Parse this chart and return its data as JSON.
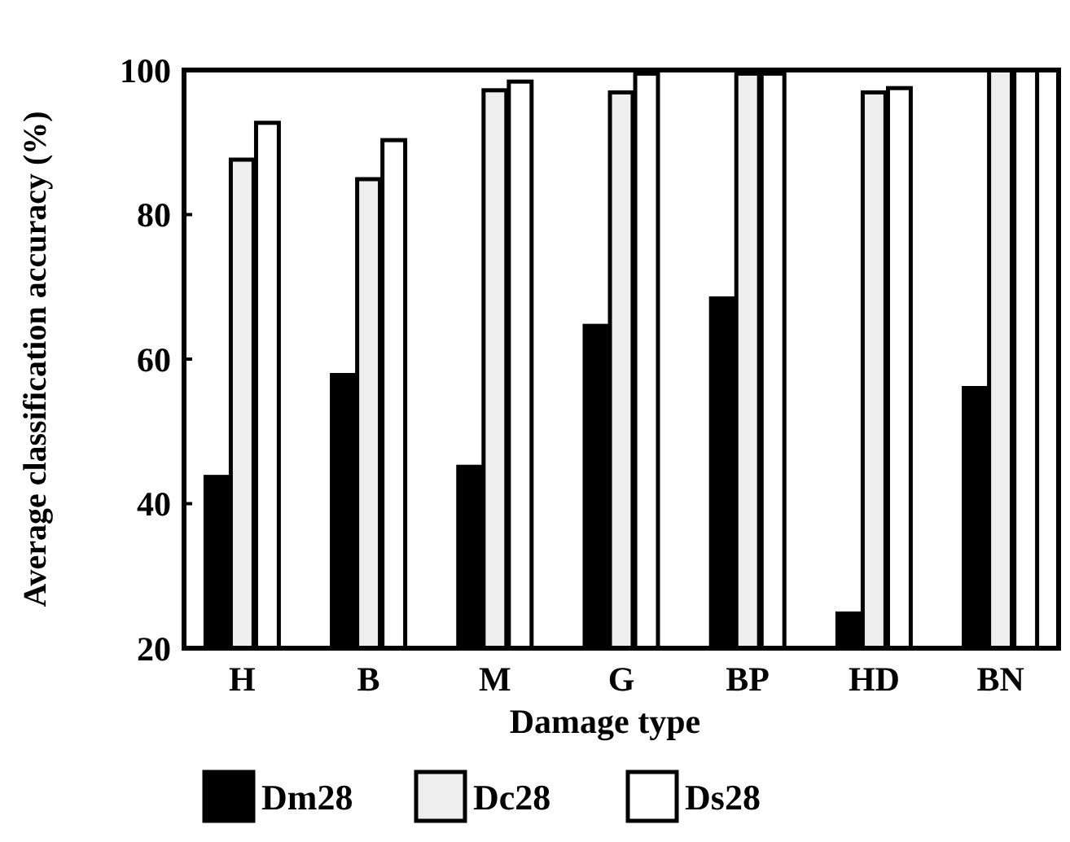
{
  "chart_data": {
    "type": "bar",
    "xlabel": "Damage type",
    "ylabel": "Average classification accuracy (%)",
    "categories": [
      "H",
      "B",
      "M",
      "G",
      "BP",
      "HD",
      "BN"
    ],
    "series": [
      {
        "name": "Dm28",
        "color": "#000000",
        "values": [
          43.7,
          57.8,
          45.1,
          64.6,
          68.4,
          24.8,
          56
        ]
      },
      {
        "name": "Dc28",
        "color": "#eeeeee",
        "values": [
          87.6,
          84.9,
          97.2,
          96.9,
          99.5,
          96.9,
          100
        ]
      },
      {
        "name": "Ds28",
        "color": "#ffffff",
        "values": [
          92.7,
          90.3,
          98.4,
          99.5,
          99.5,
          97.5,
          100
        ]
      }
    ],
    "ylim": [
      20,
      100
    ],
    "yticks": [
      20,
      40,
      60,
      80,
      100
    ],
    "legend": "bottom"
  }
}
